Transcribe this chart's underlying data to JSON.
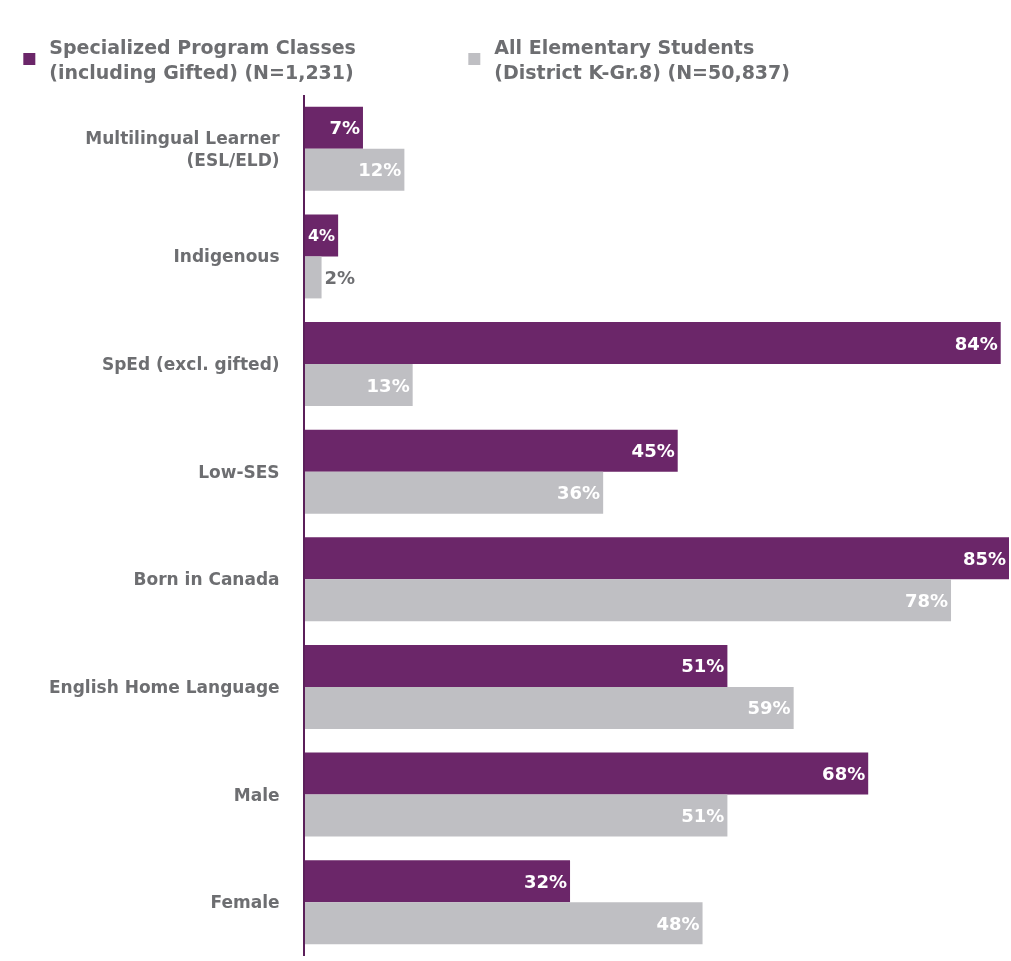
{
  "chart_data": {
    "type": "bar",
    "orientation": "horizontal",
    "relative": false,
    "categories": [
      "Multilingual Learner\n(ESL/ELD)",
      "Indigenous",
      "SpEd (excl. gifted)",
      "Low-SES",
      "Born in Canada",
      "English Home Language",
      "Male",
      "Female"
    ],
    "series": [
      {
        "name": "Specialized Program Classes\n(including Gifted) (N=1,231)",
        "color": "#6b2669",
        "values": [
          7,
          4,
          84,
          45,
          85,
          51,
          68,
          32
        ],
        "value_labels": [
          "7%",
          "4%",
          "84%",
          "45%",
          "85%",
          "51%",
          "68%",
          "32%"
        ]
      },
      {
        "name": "All Elementary Students\n(District K-Gr.8) (N=50,837)",
        "color": "#bfbfc3",
        "values": [
          12,
          2,
          13,
          36,
          78,
          59,
          51,
          48
        ],
        "value_labels": [
          "12%",
          "2%",
          "13%",
          "36%",
          "78%",
          "59%",
          "51%",
          "48%"
        ]
      }
    ],
    "xlim": [
      0,
      85
    ],
    "tick_labels": "y",
    "legend": "top left"
  }
}
